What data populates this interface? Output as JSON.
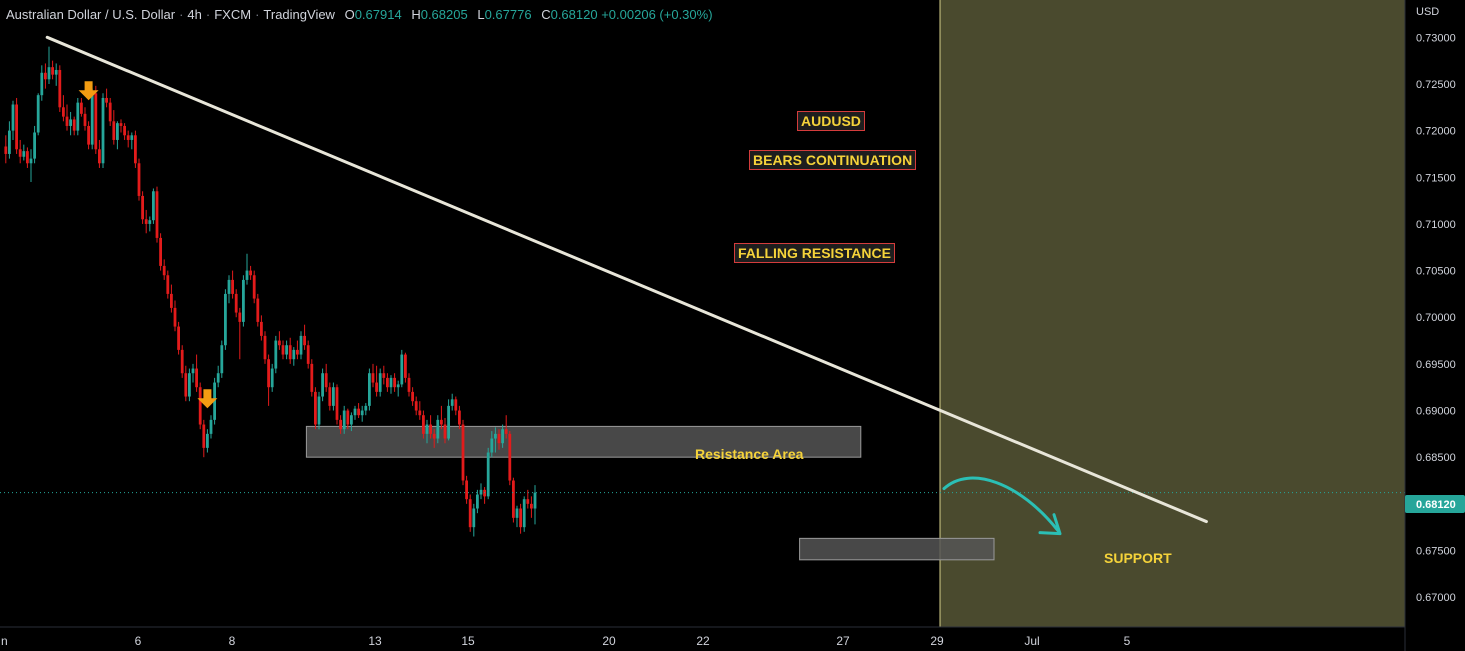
{
  "header": {
    "symbol": "Australian Dollar / U.S. Dollar",
    "interval": "4h",
    "exchange": "FXCM",
    "platform": "TradingView",
    "open_key": "O",
    "open": "0.67914",
    "high_key": "H",
    "high": "0.68205",
    "low_key": "L",
    "low": "0.67776",
    "close_key": "C",
    "close": "0.68120",
    "change": "+0.00206 (+0.30%)"
  },
  "axis": {
    "currency": "USD",
    "price_badge": "0.68120"
  },
  "annotations": {
    "pair": "AUDUSD",
    "bias": "BEARS CONTINUATION",
    "pattern": "FALLING RESISTANCE",
    "resistance_zone": "Resistance Area",
    "support_zone": "SUPPORT"
  },
  "colors": {
    "background": "#000000",
    "bull": "#26a69a",
    "bear": "#e31b1b",
    "trendline": "#e8e6d9",
    "zone": "#555555",
    "forecast_area": "#4a4a2e",
    "arrow_marker": "#f39c12",
    "forecast_arrow": "#2bbfb5",
    "tag_border": "#d43c3c",
    "tag_text": "#f5d33a"
  },
  "chart_data": {
    "type": "candlestick",
    "y_axis": {
      "ticks": [
        "0.73000",
        "0.72500",
        "0.72000",
        "0.71500",
        "0.71000",
        "0.70500",
        "0.70000",
        "0.69500",
        "0.69000",
        "0.68500",
        "0.68000",
        "0.67500",
        "0.67000"
      ],
      "ylim": [
        0.6668,
        0.734
      ]
    },
    "x_axis": {
      "ticks": [
        "n",
        "6",
        "8",
        "13",
        "15",
        "20",
        "22",
        "27",
        "29",
        "Jul",
        "5"
      ]
    },
    "trendline": {
      "from": {
        "bar": 12,
        "price": 0.73
      },
      "to": {
        "bar": 334,
        "price": 0.6781
      }
    },
    "resistance_zone": {
      "from_bar": 84,
      "to_bar": 238,
      "low": 0.685,
      "high": 0.6883
    },
    "support_zone": {
      "from_bar": 221,
      "to_bar": 275,
      "low": 0.674,
      "high": 0.6763
    },
    "forecast_start_bar": 260,
    "marker_bars": [
      23,
      56,
      201,
      227,
      250
    ],
    "candles": [
      [
        0.7183,
        0.7195,
        0.7165,
        0.7175
      ],
      [
        0.7175,
        0.721,
        0.717,
        0.72
      ],
      [
        0.72,
        0.7232,
        0.719,
        0.7228
      ],
      [
        0.7228,
        0.7235,
        0.7175,
        0.718
      ],
      [
        0.718,
        0.719,
        0.7165,
        0.7172
      ],
      [
        0.7172,
        0.7185,
        0.7168,
        0.7178
      ],
      [
        0.7178,
        0.7182,
        0.716,
        0.7165
      ],
      [
        0.7165,
        0.718,
        0.7145,
        0.717
      ],
      [
        0.717,
        0.7205,
        0.7165,
        0.7198
      ],
      [
        0.7198,
        0.724,
        0.7195,
        0.7238
      ],
      [
        0.7238,
        0.727,
        0.7232,
        0.7262
      ],
      [
        0.7262,
        0.7272,
        0.7245,
        0.7255
      ],
      [
        0.7255,
        0.729,
        0.725,
        0.7268
      ],
      [
        0.7268,
        0.7275,
        0.7255,
        0.726
      ],
      [
        0.726,
        0.7272,
        0.7248,
        0.7265
      ],
      [
        0.7265,
        0.727,
        0.722,
        0.7225
      ],
      [
        0.7225,
        0.7238,
        0.721,
        0.7215
      ],
      [
        0.7215,
        0.7228,
        0.72,
        0.7205
      ],
      [
        0.7205,
        0.722,
        0.7195,
        0.7212
      ],
      [
        0.7212,
        0.7215,
        0.7195,
        0.72
      ],
      [
        0.72,
        0.7235,
        0.7195,
        0.723
      ],
      [
        0.723,
        0.7235,
        0.7215,
        0.7218
      ],
      [
        0.7218,
        0.7225,
        0.72,
        0.7205
      ],
      [
        0.7205,
        0.721,
        0.718,
        0.7185
      ],
      [
        0.7185,
        0.7245,
        0.718,
        0.724
      ],
      [
        0.724,
        0.7248,
        0.7175,
        0.718
      ],
      [
        0.718,
        0.719,
        0.716,
        0.7165
      ],
      [
        0.7165,
        0.724,
        0.716,
        0.7235
      ],
      [
        0.7235,
        0.7245,
        0.7225,
        0.723
      ],
      [
        0.723,
        0.7235,
        0.7205,
        0.721
      ],
      [
        0.721,
        0.7222,
        0.7185,
        0.719
      ],
      [
        0.719,
        0.721,
        0.718,
        0.7208
      ],
      [
        0.7208,
        0.7212,
        0.7198,
        0.7205
      ],
      [
        0.7205,
        0.7208,
        0.719,
        0.7195
      ],
      [
        0.7195,
        0.72,
        0.7182,
        0.719
      ],
      [
        0.719,
        0.7198,
        0.718,
        0.7195
      ],
      [
        0.7195,
        0.72,
        0.716,
        0.7165
      ],
      [
        0.7165,
        0.717,
        0.7125,
        0.713
      ],
      [
        0.713,
        0.7135,
        0.71,
        0.7105
      ],
      [
        0.7105,
        0.7115,
        0.709,
        0.71
      ],
      [
        0.71,
        0.7108,
        0.7092,
        0.7104
      ],
      [
        0.7104,
        0.7138,
        0.71,
        0.7135
      ],
      [
        0.7135,
        0.714,
        0.708,
        0.7085
      ],
      [
        0.7085,
        0.709,
        0.705,
        0.7055
      ],
      [
        0.7055,
        0.7062,
        0.704,
        0.7045
      ],
      [
        0.7045,
        0.705,
        0.702,
        0.7025
      ],
      [
        0.7025,
        0.7035,
        0.7005,
        0.701
      ],
      [
        0.701,
        0.7018,
        0.6985,
        0.699
      ],
      [
        0.699,
        0.6995,
        0.696,
        0.6965
      ],
      [
        0.6965,
        0.697,
        0.6935,
        0.694
      ],
      [
        0.694,
        0.6948,
        0.691,
        0.6915
      ],
      [
        0.6915,
        0.6945,
        0.691,
        0.694
      ],
      [
        0.694,
        0.695,
        0.693,
        0.6945
      ],
      [
        0.6945,
        0.696,
        0.692,
        0.6925
      ],
      [
        0.6925,
        0.693,
        0.688,
        0.6885
      ],
      [
        0.6885,
        0.689,
        0.685,
        0.686
      ],
      [
        0.686,
        0.688,
        0.6855,
        0.6875
      ],
      [
        0.6875,
        0.6895,
        0.687,
        0.689
      ],
      [
        0.689,
        0.6935,
        0.6885,
        0.693
      ],
      [
        0.693,
        0.6948,
        0.6925,
        0.694
      ],
      [
        0.694,
        0.6975,
        0.6935,
        0.697
      ],
      [
        0.697,
        0.703,
        0.6965,
        0.7025
      ],
      [
        0.7025,
        0.7045,
        0.7015,
        0.704
      ],
      [
        0.704,
        0.705,
        0.702,
        0.7025
      ],
      [
        0.7025,
        0.703,
        0.7,
        0.7005
      ],
      [
        0.7005,
        0.701,
        0.6955,
        0.6995
      ],
      [
        0.6995,
        0.7045,
        0.699,
        0.704
      ],
      [
        0.704,
        0.7068,
        0.7035,
        0.705
      ],
      [
        0.705,
        0.7055,
        0.704,
        0.7045
      ],
      [
        0.7045,
        0.705,
        0.7015,
        0.702
      ],
      [
        0.702,
        0.7025,
        0.699,
        0.6995
      ],
      [
        0.6995,
        0.7002,
        0.6975,
        0.698
      ],
      [
        0.698,
        0.6985,
        0.695,
        0.6955
      ],
      [
        0.6955,
        0.696,
        0.6905,
        0.6925
      ],
      [
        0.6925,
        0.695,
        0.692,
        0.6945
      ],
      [
        0.6945,
        0.698,
        0.694,
        0.6975
      ],
      [
        0.6975,
        0.6985,
        0.6965,
        0.697
      ],
      [
        0.697,
        0.6975,
        0.6955,
        0.696
      ],
      [
        0.696,
        0.6975,
        0.6955,
        0.697
      ],
      [
        0.697,
        0.6978,
        0.695,
        0.6955
      ],
      [
        0.6955,
        0.6968,
        0.6948,
        0.6965
      ],
      [
        0.6965,
        0.6975,
        0.6955,
        0.696
      ],
      [
        0.696,
        0.6985,
        0.6955,
        0.698
      ],
      [
        0.698,
        0.6992,
        0.6965,
        0.697
      ],
      [
        0.697,
        0.6975,
        0.6945,
        0.695
      ],
      [
        0.695,
        0.6955,
        0.6915,
        0.692
      ],
      [
        0.692,
        0.6925,
        0.688,
        0.6885
      ],
      [
        0.6885,
        0.692,
        0.688,
        0.6915
      ],
      [
        0.6915,
        0.6945,
        0.691,
        0.694
      ],
      [
        0.694,
        0.695,
        0.692,
        0.6925
      ],
      [
        0.6925,
        0.693,
        0.69,
        0.6905
      ],
      [
        0.6905,
        0.693,
        0.69,
        0.6925
      ],
      [
        0.6925,
        0.6928,
        0.6885,
        0.689
      ],
      [
        0.689,
        0.6895,
        0.6875,
        0.688
      ],
      [
        0.688,
        0.6905,
        0.6875,
        0.69
      ],
      [
        0.69,
        0.6902,
        0.688,
        0.6885
      ],
      [
        0.6885,
        0.6898,
        0.6878,
        0.6895
      ],
      [
        0.6895,
        0.6905,
        0.689,
        0.6902
      ],
      [
        0.6902,
        0.6908,
        0.6892,
        0.6895
      ],
      [
        0.6895,
        0.6905,
        0.6888,
        0.69
      ],
      [
        0.69,
        0.6908,
        0.6895,
        0.6905
      ],
      [
        0.6905,
        0.6945,
        0.69,
        0.694
      ],
      [
        0.694,
        0.695,
        0.6925,
        0.693
      ],
      [
        0.693,
        0.6948,
        0.6915,
        0.692
      ],
      [
        0.692,
        0.6945,
        0.6915,
        0.694
      ],
      [
        0.694,
        0.6948,
        0.6928,
        0.6935
      ],
      [
        0.6935,
        0.694,
        0.692,
        0.6925
      ],
      [
        0.6925,
        0.6938,
        0.6918,
        0.6935
      ],
      [
        0.6935,
        0.694,
        0.692,
        0.6925
      ],
      [
        0.6925,
        0.6932,
        0.6915,
        0.6928
      ],
      [
        0.6928,
        0.6965,
        0.6925,
        0.696
      ],
      [
        0.696,
        0.6962,
        0.693,
        0.6935
      ],
      [
        0.6935,
        0.694,
        0.6915,
        0.692
      ],
      [
        0.692,
        0.6925,
        0.6905,
        0.691
      ],
      [
        0.691,
        0.6915,
        0.6895,
        0.69
      ],
      [
        0.69,
        0.691,
        0.689,
        0.6895
      ],
      [
        0.6895,
        0.69,
        0.687,
        0.6875
      ],
      [
        0.6875,
        0.689,
        0.6865,
        0.6885
      ],
      [
        0.6885,
        0.6895,
        0.687,
        0.6875
      ],
      [
        0.6875,
        0.688,
        0.686,
        0.687
      ],
      [
        0.687,
        0.6895,
        0.6865,
        0.689
      ],
      [
        0.689,
        0.6905,
        0.688,
        0.6885
      ],
      [
        0.6885,
        0.6892,
        0.6865,
        0.687
      ],
      [
        0.687,
        0.6912,
        0.6868,
        0.6905
      ],
      [
        0.6905,
        0.6918,
        0.69,
        0.6912
      ],
      [
        0.6912,
        0.6915,
        0.6895,
        0.69
      ],
      [
        0.69,
        0.6905,
        0.688,
        0.6885
      ],
      [
        0.6885,
        0.689,
        0.682,
        0.6825
      ],
      [
        0.6825,
        0.683,
        0.68,
        0.6805
      ],
      [
        0.6805,
        0.681,
        0.677,
        0.6775
      ],
      [
        0.6775,
        0.68,
        0.6765,
        0.6795
      ],
      [
        0.6795,
        0.6815,
        0.679,
        0.681
      ],
      [
        0.681,
        0.6822,
        0.6805,
        0.6815
      ],
      [
        0.6815,
        0.6818,
        0.68,
        0.6808
      ],
      [
        0.6808,
        0.686,
        0.6805,
        0.6855
      ],
      [
        0.6855,
        0.6878,
        0.685,
        0.687
      ],
      [
        0.687,
        0.6882,
        0.6855,
        0.6875
      ],
      [
        0.6875,
        0.688,
        0.6858,
        0.6865
      ],
      [
        0.6865,
        0.6885,
        0.686,
        0.688
      ],
      [
        0.688,
        0.6895,
        0.687,
        0.6875
      ],
      [
        0.6875,
        0.6878,
        0.682,
        0.6825
      ],
      [
        0.6825,
        0.6828,
        0.678,
        0.6785
      ],
      [
        0.6785,
        0.6798,
        0.6775,
        0.6795
      ],
      [
        0.6795,
        0.68,
        0.6768,
        0.6775
      ],
      [
        0.6775,
        0.6808,
        0.677,
        0.6805
      ],
      [
        0.6805,
        0.6815,
        0.6795,
        0.68
      ],
      [
        0.68,
        0.6808,
        0.6785,
        0.6795
      ],
      [
        0.6795,
        0.682,
        0.6778,
        0.6812
      ]
    ]
  }
}
